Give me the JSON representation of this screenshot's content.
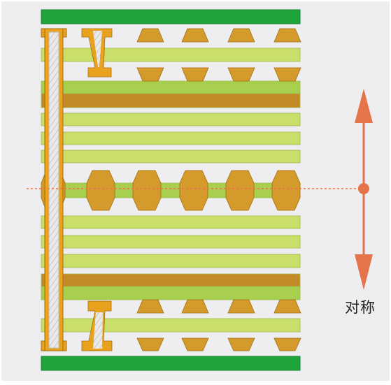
{
  "diagram": {
    "label": "对称",
    "colors": {
      "background": "#EEEEF0",
      "solder_mask": "#1FA53B",
      "solder_mask_edge": "#12822C",
      "core_light": "#C9DF6A",
      "core_dark": "#C48A28",
      "prepreg": "#A9CF4F",
      "copper": "#D59A2C",
      "copper_edge": "#A36E12",
      "via_barrel": "#E8A21E",
      "via_fill": "#E9E9E9",
      "arrow": "#E5744B",
      "symmetry_line": "#E5744B"
    },
    "icons": {
      "symmetry_arrow": "double-arrow-vertical-icon",
      "through_via": "through-hole-via-icon",
      "blind_via": "blind-via-icon"
    }
  }
}
